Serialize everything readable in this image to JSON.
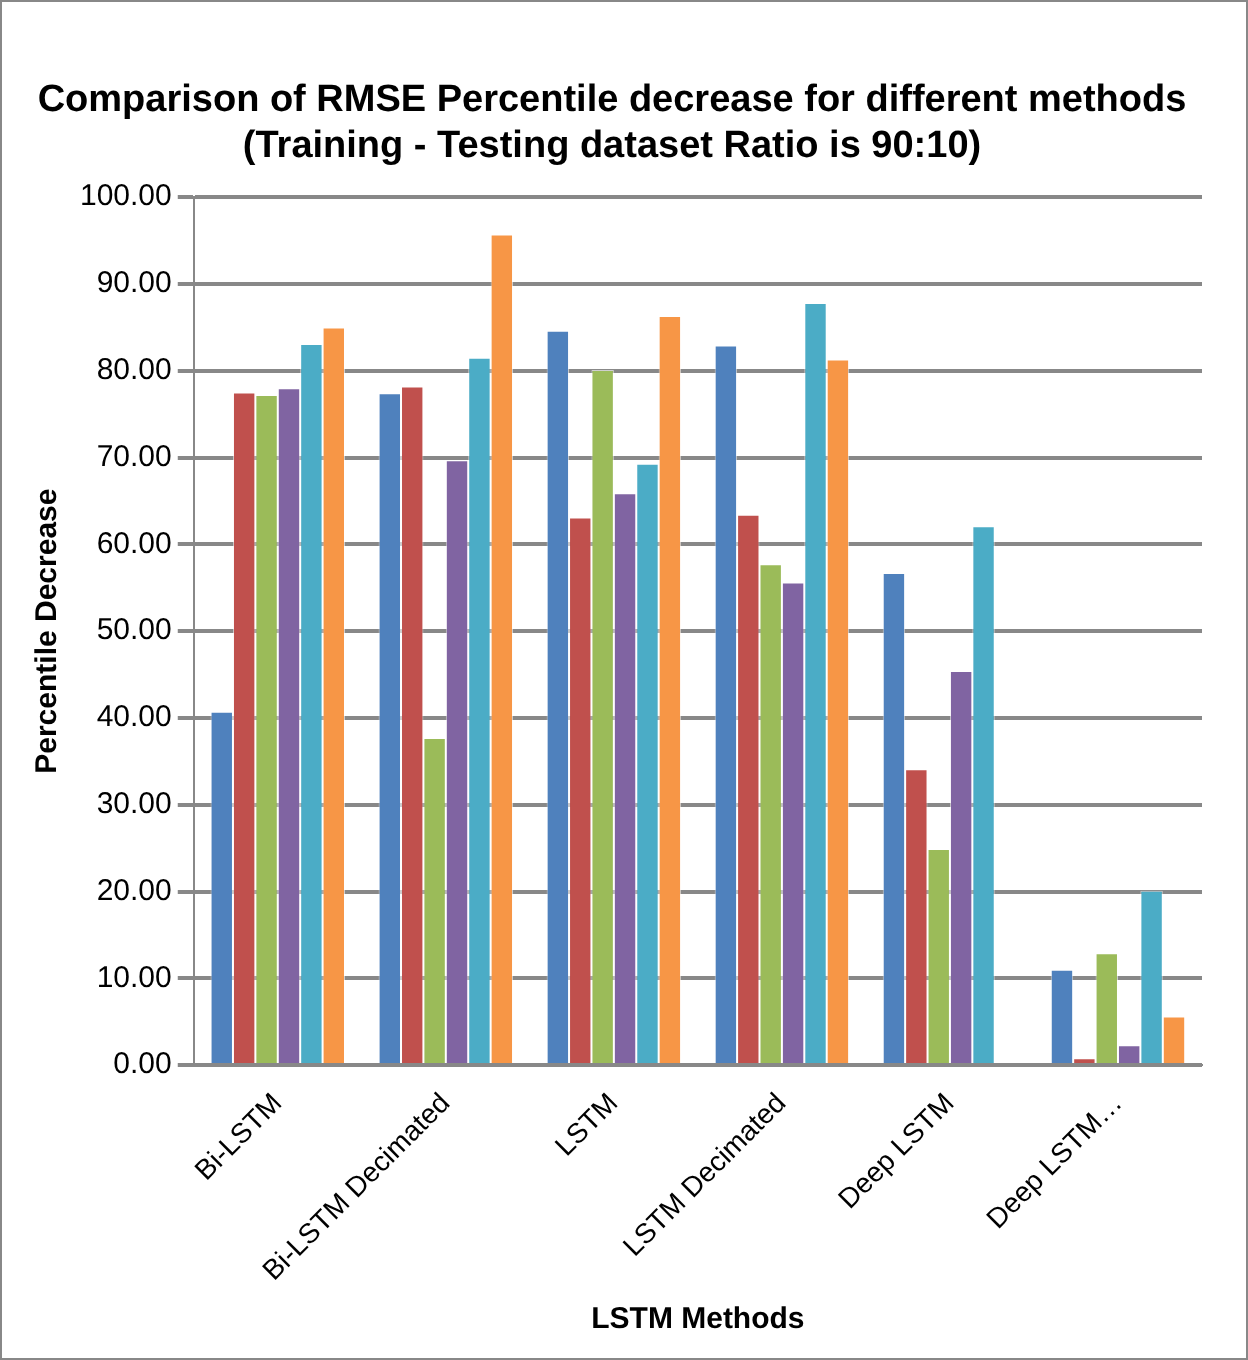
{
  "chart_data": {
    "type": "bar",
    "title": "Comparison of RMSE Percentile decrease for different methods\n(Training - Testing dataset Ratio is 90:10)",
    "xlabel": "LSTM Methods",
    "ylabel": "Percentile Decrease",
    "categories": [
      "Bi-LSTM",
      "Bi-LSTM Decimated",
      "LSTM",
      "LSTM Decimated",
      "Deep LSTM",
      "Deep LSTM…"
    ],
    "series": [
      {
        "color": "#4f81bd",
        "values": [
          40.7,
          77.4,
          84.6,
          82.9,
          56.7,
          11.0
        ]
      },
      {
        "color": "#c0504d",
        "values": [
          77.5,
          78.2,
          63.1,
          63.4,
          34.1,
          0.8
        ]
      },
      {
        "color": "#9bbb59",
        "values": [
          77.2,
          37.7,
          80.1,
          57.7,
          24.9,
          12.9
        ]
      },
      {
        "color": "#8064a2",
        "values": [
          78.0,
          69.7,
          65.9,
          55.6,
          45.4,
          2.3
        ]
      },
      {
        "color": "#4bacc6",
        "values": [
          83.1,
          81.5,
          69.3,
          87.8,
          62.1,
          20.1
        ]
      },
      {
        "color": "#f79646",
        "values": [
          85.0,
          95.7,
          86.3,
          81.3,
          null,
          5.6
        ]
      }
    ],
    "ylim": [
      0,
      100
    ],
    "yticks": [
      {
        "value": 0,
        "label": "0.00"
      },
      {
        "value": 10,
        "label": "10.00"
      },
      {
        "value": 20,
        "label": "20.00"
      },
      {
        "value": 30,
        "label": "30.00"
      },
      {
        "value": 40,
        "label": "40.00"
      },
      {
        "value": 50,
        "label": "50.00"
      },
      {
        "value": 60,
        "label": "60.00"
      },
      {
        "value": 70,
        "label": "70.00"
      },
      {
        "value": 80,
        "label": "80.00"
      },
      {
        "value": 90,
        "label": "90.00"
      },
      {
        "value": 100,
        "label": "100.00"
      }
    ],
    "grid": "y",
    "legend": false
  }
}
